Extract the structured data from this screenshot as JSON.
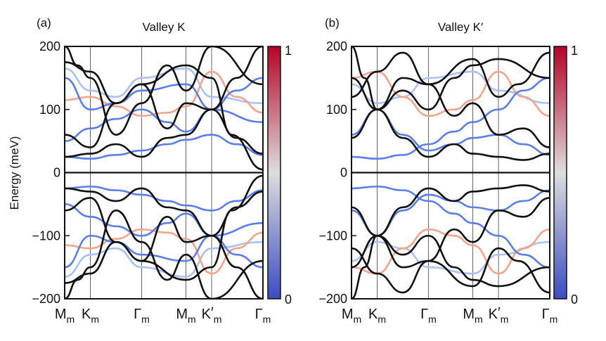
{
  "figure": {
    "ylabel": "Energy (meV)",
    "colorbar": {
      "min_label": "0",
      "max_label": "1",
      "low_color": "#3b4cc0",
      "mid_color": "#dddddd",
      "high_color": "#b40426"
    },
    "band_colors": {
      "black": "#111111",
      "blue": "#5a7de8",
      "lightblue": "#a9c1f3",
      "salmon": "#f2a48c"
    }
  },
  "chart_data": [
    {
      "type": "line",
      "panel_label": "(a)",
      "title": "Valley K",
      "ylim": [
        -200,
        200
      ],
      "yticks": [
        "200",
        "100",
        "0",
        "−100",
        "−200"
      ],
      "ytick_values": [
        200,
        100,
        0,
        -100,
        -200
      ],
      "xticks": [
        {
          "main": "M",
          "sub": "m",
          "prime": "",
          "pos": 0
        },
        {
          "main": "K",
          "sub": "m",
          "prime": "",
          "pos": 1
        },
        {
          "main": "Γ",
          "sub": "m",
          "prime": "",
          "pos": 3
        },
        {
          "main": "M",
          "sub": "m",
          "prime": "",
          "pos": 4.73
        },
        {
          "main": "K",
          "sub": "m",
          "prime": "′",
          "pos": 5.73
        },
        {
          "main": "Γ",
          "sub": "m",
          "prime": "",
          "pos": 7.73
        }
      ],
      "xlim": [
        0,
        7.73
      ],
      "series": [
        {
          "color": "black",
          "x": [
            0,
            1,
            3,
            4.73,
            5.73,
            7.73
          ],
          "y": [
            0,
            0,
            0,
            0,
            0,
            0
          ]
        },
        {
          "color": "black",
          "x": [
            0,
            1,
            2,
            3,
            4,
            4.73,
            5.73,
            6.7,
            7.73
          ],
          "y": [
            -25,
            -30,
            -45,
            -25,
            -55,
            -60,
            -100,
            -55,
            -30
          ]
        },
        {
          "color": "black",
          "x": [
            0,
            1,
            2,
            3,
            4,
            4.73,
            5.73,
            6.7,
            7.73
          ],
          "y": [
            25,
            30,
            45,
            25,
            55,
            60,
            100,
            55,
            30
          ]
        },
        {
          "color": "black",
          "x": [
            0,
            1,
            2,
            3,
            4,
            4.73,
            5.73,
            6.7,
            7.73
          ],
          "y": [
            60,
            40,
            110,
            140,
            70,
            110,
            100,
            150,
            200
          ]
        },
        {
          "color": "black",
          "x": [
            0,
            1,
            2,
            3,
            4,
            4.73,
            5.73,
            6.7,
            7.73
          ],
          "y": [
            -60,
            -40,
            -110,
            -140,
            -70,
            -110,
            -100,
            -150,
            -200
          ]
        },
        {
          "color": "black",
          "x": [
            0,
            1,
            2,
            3,
            4.73,
            5.73,
            6.5,
            7.73
          ],
          "y": [
            175,
            160,
            110,
            140,
            170,
            150,
            60,
            5
          ]
        },
        {
          "color": "black",
          "x": [
            0,
            1,
            2,
            3,
            4.73,
            5.73,
            6.5,
            7.73
          ],
          "y": [
            -175,
            -160,
            -110,
            -140,
            -170,
            -150,
            -60,
            -5
          ]
        },
        {
          "color": "black",
          "x": [
            0,
            0.5,
            1,
            2,
            3,
            4,
            4.73,
            5.73,
            7.73
          ],
          "y": [
            200,
            170,
            150,
            60,
            110,
            170,
            130,
            200,
            140
          ]
        },
        {
          "color": "black",
          "x": [
            0,
            0.5,
            1,
            2,
            3,
            4,
            4.73,
            5.73,
            7.73
          ],
          "y": [
            -200,
            -170,
            -150,
            -60,
            -110,
            -170,
            -130,
            -200,
            -140
          ]
        },
        {
          "color": "blue",
          "x": [
            0,
            1,
            2,
            3,
            4,
            4.73,
            5.73,
            6.7,
            7.73
          ],
          "y": [
            -25,
            -22,
            -28,
            -35,
            -45,
            -52,
            -60,
            -45,
            -28
          ]
        },
        {
          "color": "blue",
          "x": [
            0,
            1,
            2,
            3,
            4,
            4.73,
            5.73,
            6.7,
            7.73
          ],
          "y": [
            25,
            22,
            28,
            35,
            45,
            52,
            60,
            45,
            28
          ]
        },
        {
          "color": "blue",
          "x": [
            0,
            1,
            2,
            3,
            4,
            4.73,
            5.73,
            6.7,
            7.73
          ],
          "y": [
            50,
            70,
            85,
            100,
            80,
            65,
            100,
            130,
            150
          ]
        },
        {
          "color": "blue",
          "x": [
            0,
            1,
            2,
            3,
            4,
            4.73,
            5.73,
            6.7,
            7.73
          ],
          "y": [
            -50,
            -70,
            -85,
            -100,
            -80,
            -65,
            -100,
            -130,
            -150
          ]
        },
        {
          "color": "blue",
          "x": [
            0,
            1,
            2,
            3,
            4.73,
            5.73,
            7.73
          ],
          "y": [
            150,
            100,
            110,
            130,
            140,
            100,
            80
          ]
        },
        {
          "color": "blue",
          "x": [
            0,
            1,
            2,
            3,
            4.73,
            5.73,
            7.73
          ],
          "y": [
            -150,
            -100,
            -110,
            -130,
            -140,
            -100,
            -80
          ]
        },
        {
          "color": "lightblue",
          "x": [
            0,
            1,
            2,
            3,
            4.73,
            5.73,
            7.73
          ],
          "y": [
            165,
            130,
            120,
            150,
            165,
            120,
            110
          ]
        },
        {
          "color": "lightblue",
          "x": [
            0,
            1,
            2,
            3,
            4.73,
            5.73,
            7.73
          ],
          "y": [
            -165,
            -130,
            -120,
            -150,
            -165,
            -120,
            -110
          ]
        },
        {
          "color": "salmon",
          "x": [
            0,
            1,
            2,
            3,
            4,
            4.73,
            5.73,
            6.7,
            7.73
          ],
          "y": [
            115,
            120,
            105,
            90,
            95,
            105,
            160,
            120,
            95
          ]
        },
        {
          "color": "salmon",
          "x": [
            0,
            1,
            2,
            3,
            4,
            4.73,
            5.73,
            6.7,
            7.73
          ],
          "y": [
            -115,
            -120,
            -105,
            -90,
            -95,
            -105,
            -160,
            -120,
            -95
          ]
        }
      ]
    },
    {
      "type": "line",
      "panel_label": "(b)",
      "title": "Valley K′",
      "ylim": [
        -200,
        200
      ],
      "yticks": [
        "200",
        "100",
        "0",
        "−100",
        "−200"
      ],
      "ytick_values": [
        200,
        100,
        0,
        -100,
        -200
      ],
      "xticks": [
        {
          "main": "M",
          "sub": "m",
          "prime": "",
          "pos": 0
        },
        {
          "main": "K",
          "sub": "m",
          "prime": "",
          "pos": 1
        },
        {
          "main": "Γ",
          "sub": "m",
          "prime": "",
          "pos": 3
        },
        {
          "main": "M",
          "sub": "m",
          "prime": "",
          "pos": 4.73
        },
        {
          "main": "K",
          "sub": "m",
          "prime": "′",
          "pos": 5.73
        },
        {
          "main": "Γ",
          "sub": "m",
          "prime": "",
          "pos": 7.73
        }
      ],
      "xlim": [
        0,
        7.73
      ],
      "series": [
        {
          "color": "black",
          "x": [
            0,
            1,
            3,
            4.73,
            5.73,
            7.73
          ],
          "y": [
            0,
            0,
            0,
            0,
            0,
            0
          ]
        },
        {
          "color": "black",
          "x": [
            0,
            1,
            2,
            3,
            4,
            4.73,
            5.73,
            6.7,
            7.73
          ],
          "y": [
            -55,
            -100,
            -55,
            -25,
            -45,
            -30,
            -25,
            -20,
            -30
          ]
        },
        {
          "color": "black",
          "x": [
            0,
            1,
            2,
            3,
            4,
            4.73,
            5.73,
            6.7,
            7.73
          ],
          "y": [
            55,
            100,
            55,
            25,
            45,
            30,
            25,
            20,
            30
          ]
        },
        {
          "color": "black",
          "x": [
            0,
            1,
            2,
            3,
            4,
            4.73,
            5.73,
            6.7,
            7.73
          ],
          "y": [
            150,
            100,
            150,
            140,
            90,
            110,
            60,
            70,
            40
          ]
        },
        {
          "color": "black",
          "x": [
            0,
            1,
            2,
            3,
            4,
            4.73,
            5.73,
            6.7,
            7.73
          ],
          "y": [
            -150,
            -100,
            -150,
            -140,
            -90,
            -110,
            -60,
            -70,
            -40
          ]
        },
        {
          "color": "black",
          "x": [
            0,
            0.5,
            1,
            2,
            3,
            4,
            4.73,
            5.73,
            7.73
          ],
          "y": [
            200,
            150,
            100,
            130,
            100,
            150,
            170,
            180,
            150
          ]
        },
        {
          "color": "black",
          "x": [
            0,
            0.5,
            1,
            2,
            3,
            4,
            4.73,
            5.73,
            7.73
          ],
          "y": [
            -200,
            -150,
            -100,
            -130,
            -100,
            -150,
            -170,
            -180,
            -150
          ]
        },
        {
          "color": "black",
          "x": [
            0,
            1,
            2,
            3,
            4.73,
            5.73,
            6.5,
            7.73
          ],
          "y": [
            120,
            160,
            190,
            140,
            180,
            120,
            140,
            190
          ]
        },
        {
          "color": "black",
          "x": [
            0,
            1,
            2,
            3,
            4.73,
            5.73,
            6.5,
            7.73
          ],
          "y": [
            -120,
            -160,
            -190,
            -140,
            -180,
            -120,
            -140,
            -190
          ]
        },
        {
          "color": "blue",
          "x": [
            0,
            1,
            2,
            3,
            4,
            4.73,
            5.73,
            6.7,
            7.73
          ],
          "y": [
            -60,
            -100,
            -60,
            -35,
            -45,
            -55,
            -60,
            -45,
            -28
          ]
        },
        {
          "color": "blue",
          "x": [
            0,
            1,
            2,
            3,
            4,
            4.73,
            5.73,
            6.7,
            7.73
          ],
          "y": [
            60,
            100,
            60,
            35,
            45,
            55,
            60,
            45,
            28
          ]
        },
        {
          "color": "blue",
          "x": [
            0,
            1,
            2,
            3,
            4,
            4.73,
            5.73,
            6.7,
            7.73
          ],
          "y": [
            25,
            22,
            28,
            45,
            65,
            80,
            100,
            130,
            150
          ]
        },
        {
          "color": "blue",
          "x": [
            0,
            1,
            2,
            3,
            4,
            4.73,
            5.73,
            6.7,
            7.73
          ],
          "y": [
            -25,
            -22,
            -28,
            -45,
            -65,
            -80,
            -100,
            -130,
            -150
          ]
        },
        {
          "color": "lightblue",
          "x": [
            0,
            1,
            2,
            3,
            4.73,
            5.73,
            7.73
          ],
          "y": [
            140,
            110,
            120,
            150,
            160,
            130,
            110
          ]
        },
        {
          "color": "lightblue",
          "x": [
            0,
            1,
            2,
            3,
            4.73,
            5.73,
            7.73
          ],
          "y": [
            -140,
            -110,
            -120,
            -150,
            -160,
            -130,
            -110
          ]
        },
        {
          "color": "salmon",
          "x": [
            0,
            1,
            2,
            3,
            4,
            4.73,
            5.73,
            6.7,
            7.73
          ],
          "y": [
            150,
            160,
            120,
            90,
            100,
            115,
            160,
            120,
            90
          ]
        },
        {
          "color": "salmon",
          "x": [
            0,
            1,
            2,
            3,
            4,
            4.73,
            5.73,
            6.7,
            7.73
          ],
          "y": [
            -150,
            -160,
            -120,
            -90,
            -100,
            -115,
            -160,
            -120,
            -90
          ]
        }
      ]
    }
  ]
}
